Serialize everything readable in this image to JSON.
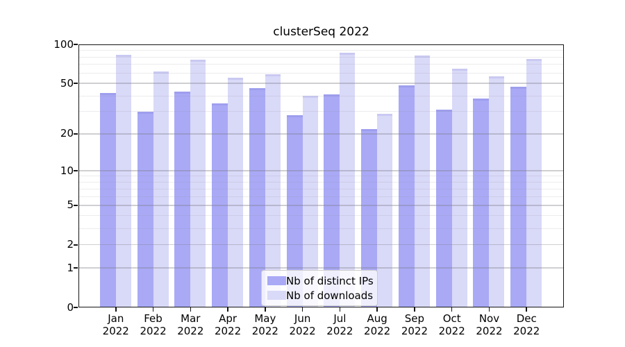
{
  "title": "clusterSeq 2022",
  "chart_data": {
    "type": "bar",
    "title": "clusterSeq 2022",
    "categories": [
      "Jan 2022",
      "Feb 2022",
      "Mar 2022",
      "Apr 2022",
      "May 2022",
      "Jun 2022",
      "Jul 2022",
      "Aug 2022",
      "Sep 2022",
      "Oct 2022",
      "Nov 2022",
      "Dec 2022"
    ],
    "months": [
      "Jan",
      "Feb",
      "Mar",
      "Apr",
      "May",
      "Jun",
      "Jul",
      "Aug",
      "Sep",
      "Oct",
      "Nov",
      "Dec"
    ],
    "year_label": "2022",
    "series": [
      {
        "name": "Nb of distinct IPs",
        "color": "#a9a9f6",
        "edge_color": "#9e9eee",
        "values": [
          42,
          30,
          43,
          35,
          46,
          28,
          41,
          22,
          48,
          31,
          38,
          47
        ]
      },
      {
        "name": "Nb of downloads",
        "color": "#d9d9f8",
        "edge_color": "#c9c9f2",
        "values": [
          83,
          62,
          76,
          55,
          59,
          40,
          86,
          29,
          82,
          65,
          57,
          77
        ]
      }
    ],
    "xlabel": "",
    "ylabel": "",
    "yscale": "log1p",
    "ylim": [
      0,
      100
    ],
    "yticks": [
      100,
      50,
      20,
      10,
      5,
      2,
      1,
      0
    ],
    "yticks_minor": [
      90,
      80,
      70,
      60,
      40,
      30,
      9,
      8,
      7,
      6,
      4,
      3
    ],
    "grid": true,
    "legend_position": "lower center"
  },
  "colors": {
    "grid_major": "rgba(130,130,140,0.38)",
    "grid_minor": "rgba(150,150,160,0.18)",
    "frame": "#141414",
    "background": "#ffffff",
    "text": "#000000"
  }
}
